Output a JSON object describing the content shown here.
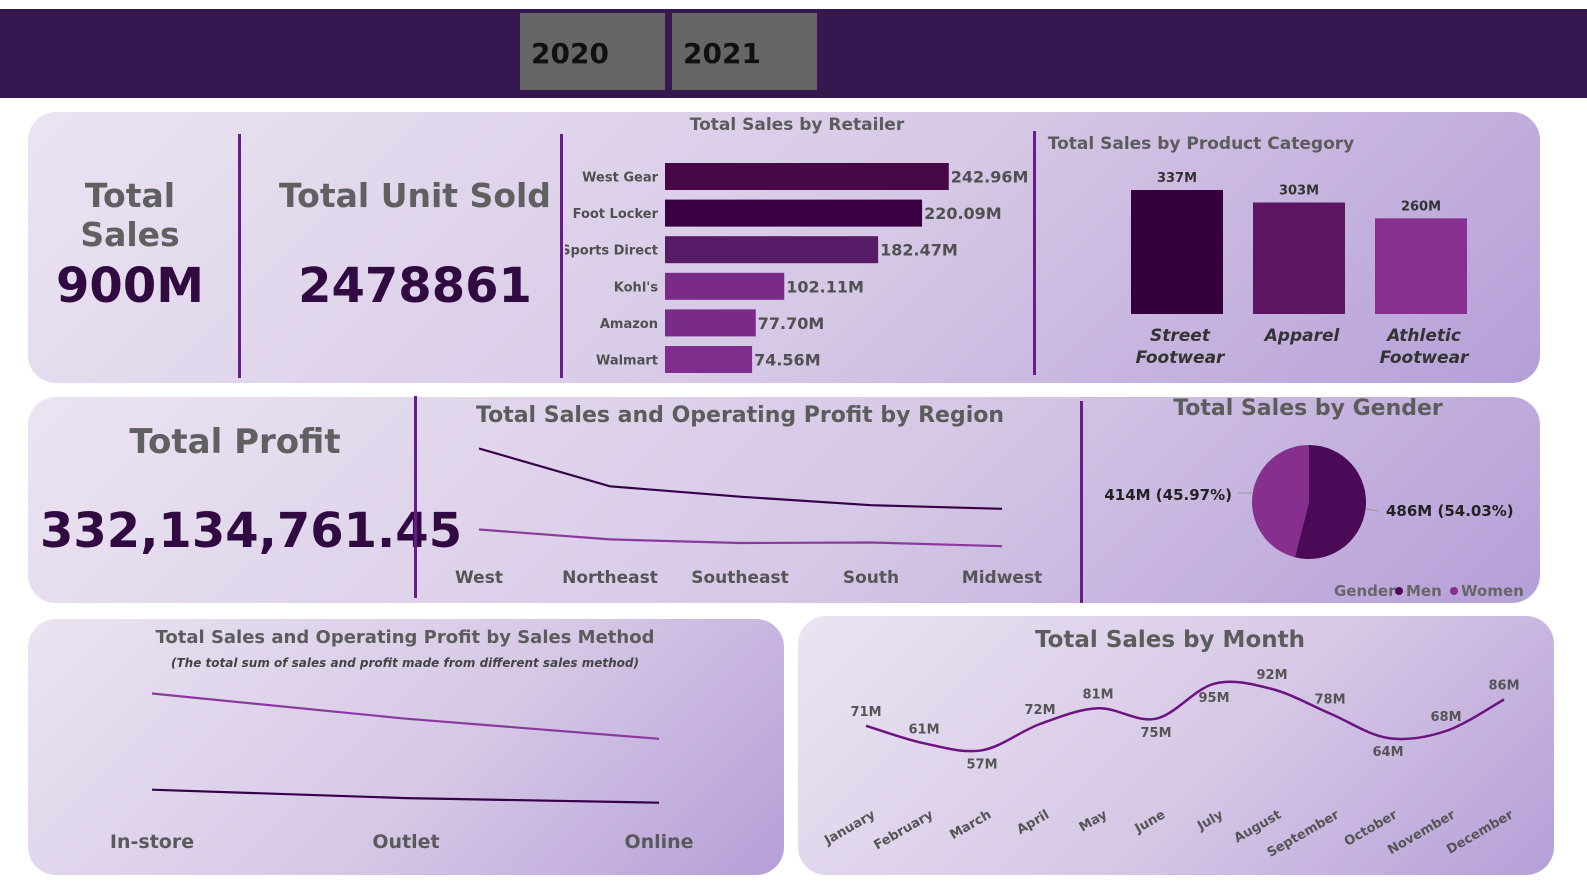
{
  "slicer": {
    "years": [
      "2020",
      "2021"
    ]
  },
  "kpis": {
    "total_sales": {
      "label": "Total Sales",
      "value": "900M"
    },
    "total_units": {
      "label": "Total Unit Sold",
      "value": "2478861"
    },
    "total_profit": {
      "label": "Total Profit",
      "value": "332,134,761.45"
    }
  },
  "colors": {
    "header": "#361850",
    "dark": "#3a0048",
    "mid": "#5c1664",
    "light": "#86308f",
    "divider": "#6a1b8a"
  },
  "chart_data": [
    {
      "id": "retailer",
      "type": "bar",
      "orientation": "horizontal",
      "title": "Total Sales by Retailer",
      "categories": [
        "West Gear",
        "Foot Locker",
        "Sports Direct",
        "Kohl's",
        "Amazon",
        "Walmart"
      ],
      "values": [
        242.96,
        220.09,
        182.47,
        102.11,
        77.7,
        74.56
      ],
      "labels": [
        "242.96M",
        "220.09M",
        "182.47M",
        "102.11M",
        "77.70M",
        "74.56M"
      ],
      "colors": [
        "#470848",
        "#380042",
        "#571a66",
        "#7a2a88",
        "#7a2a88",
        "#802e8e"
      ],
      "xlim": [
        0,
        250
      ]
    },
    {
      "id": "category",
      "type": "bar",
      "title": "Total Sales by Product Category",
      "categories": [
        "Street Footwear",
        "Apparel",
        "Athletic Footwear"
      ],
      "category_lines": [
        [
          "Street",
          "Footwear"
        ],
        [
          "Apparel"
        ],
        [
          "Athletic",
          "Footwear"
        ]
      ],
      "values": [
        337,
        303,
        260
      ],
      "labels": [
        "337M",
        "303M",
        "260M"
      ],
      "colors": [
        "#36003f",
        "#5c1562",
        "#86318f"
      ],
      "ylim": [
        0,
        337
      ]
    },
    {
      "id": "region",
      "type": "line",
      "title": "Total Sales and Operating Profit by Region",
      "categories": [
        "West",
        "Northeast",
        "Southeast",
        "South",
        "Midwest"
      ],
      "series": [
        {
          "values": [
            270,
            186,
            163,
            144,
            136
          ],
          "color": "#36004a"
        },
        {
          "values": [
            90,
            68,
            60,
            61,
            53
          ],
          "color": "#8a3a9e"
        }
      ],
      "ylim": [
        0,
        300
      ]
    },
    {
      "id": "gender",
      "type": "pie",
      "title": "Total Sales by Gender",
      "legend_title": "Gender",
      "legend_position": "bottom-right",
      "slices": [
        {
          "name": "Men",
          "value": 486,
          "label": "486M (54.03%)",
          "color": "#4a0a58"
        },
        {
          "name": "Women",
          "value": 414,
          "label": "414M (45.97%)",
          "color": "#862f8f"
        }
      ]
    },
    {
      "id": "method",
      "type": "line",
      "title": "Total Sales and Operating Profit by Sales Method",
      "subtitle": "(The total sum of sales and profit made from different sales method)",
      "categories": [
        "In-store",
        "Outlet",
        "Online"
      ],
      "series": [
        {
          "values": [
            356,
            296,
            248
          ],
          "color": "#8a3a9e"
        },
        {
          "values": [
            127,
            107,
            96
          ],
          "color": "#36004a"
        }
      ],
      "ylim": [
        0,
        400
      ]
    },
    {
      "id": "month",
      "type": "line",
      "title": "Total Sales by Month",
      "categories": [
        "January",
        "February",
        "March",
        "April",
        "May",
        "June",
        "July",
        "August",
        "September",
        "October",
        "November",
        "December"
      ],
      "values": [
        71,
        61,
        57,
        72,
        81,
        75,
        95,
        92,
        78,
        64,
        68,
        86
      ],
      "labels": [
        "71M",
        "61M",
        "57M",
        "72M",
        "81M",
        "75M",
        "95M",
        "92M",
        "78M",
        "64M",
        "68M",
        "86M"
      ],
      "label_pos": [
        "above",
        "above",
        "below",
        "above",
        "above",
        "below",
        "below",
        "above",
        "above",
        "below",
        "above",
        "above"
      ],
      "color": "#6e1282",
      "ylim": [
        40,
        100
      ]
    }
  ]
}
